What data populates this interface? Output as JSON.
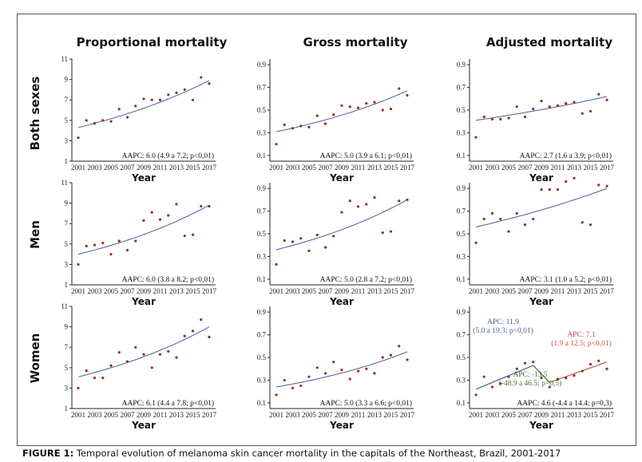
{
  "column_titles": [
    "Proportional mortality",
    "Gross mortality",
    "Adjusted mortality"
  ],
  "row_titles": [
    "Both sexes",
    "Men",
    "Women"
  ],
  "caption": {
    "label": "FIGURE 1:",
    "text": " Temporal evolution of melanoma skin cancer mortality in the capitals of the Northeast, Brazil, 2001-2017"
  },
  "colors": {
    "points": "#9a2b22",
    "trend": "#4a5a9c",
    "trend2": "#c0504d",
    "green": "#3a7a2a"
  },
  "chart_data": [
    {
      "type": "scatter",
      "row": "Both sexes",
      "col": "Proportional mortality",
      "xlabel": "Year",
      "ylim": [
        1,
        11
      ],
      "yticks": [
        "1",
        "3",
        "5",
        "7",
        "9",
        "11"
      ],
      "xticks": [
        "2001",
        "2003",
        "2005",
        "2007",
        "2009",
        "2011",
        "2013",
        "2015",
        "2017"
      ],
      "x": [
        2001,
        2002,
        2003,
        2004,
        2005,
        2006,
        2007,
        2008,
        2009,
        2010,
        2011,
        2012,
        2013,
        2014,
        2015,
        2016,
        2017
      ],
      "y": [
        3.3,
        5.0,
        4.7,
        5.0,
        4.9,
        6.1,
        5.3,
        6.4,
        7.1,
        7.0,
        7.0,
        7.5,
        7.7,
        8.0,
        7.0,
        9.2,
        8.6
      ],
      "trend": [
        4.3,
        8.9
      ],
      "annotation": "AAPC: 6.0 (4.9 a 7.2; p<0,01)"
    },
    {
      "type": "scatter",
      "row": "Both sexes",
      "col": "Gross mortality",
      "xlabel": "Year",
      "ylim": [
        0.05,
        0.95
      ],
      "yticks": [
        "0.1",
        "0.3",
        "0.5",
        "0.7",
        "0.9"
      ],
      "xticks": [
        "2001",
        "2003",
        "2005",
        "2007",
        "2009",
        "2011",
        "2013",
        "2015",
        "2017"
      ],
      "x": [
        2001,
        2002,
        2003,
        2004,
        2005,
        2006,
        2007,
        2008,
        2009,
        2010,
        2011,
        2012,
        2013,
        2014,
        2015,
        2016,
        2017
      ],
      "y": [
        0.2,
        0.37,
        0.34,
        0.36,
        0.35,
        0.45,
        0.38,
        0.46,
        0.54,
        0.53,
        0.52,
        0.56,
        0.57,
        0.5,
        0.51,
        0.69,
        0.63
      ],
      "trend": [
        0.31,
        0.67
      ],
      "annotation": "AAPC: 5.0 (3.9 a 6.1; p<0,01)"
    },
    {
      "type": "scatter",
      "row": "Both sexes",
      "col": "Adjusted mortality",
      "xlabel": "Year",
      "ylim": [
        0.05,
        0.95
      ],
      "yticks": [
        "0.1",
        "0.3",
        "0.5",
        "0.7",
        "0.9"
      ],
      "xticks": [
        "2001",
        "2003",
        "2005",
        "2007",
        "2009",
        "2011",
        "2013",
        "2015",
        "2017"
      ],
      "x": [
        2001,
        2002,
        2003,
        2004,
        2005,
        2006,
        2007,
        2008,
        2009,
        2010,
        2011,
        2012,
        2013,
        2014,
        2015,
        2016,
        2017
      ],
      "y": [
        0.26,
        0.44,
        0.42,
        0.42,
        0.43,
        0.53,
        0.44,
        0.51,
        0.58,
        0.53,
        0.54,
        0.56,
        0.57,
        0.47,
        0.49,
        0.64,
        0.59
      ],
      "trend": [
        0.41,
        0.62
      ],
      "annotation": "AAPC: 2.7 (1.6 a 3.9; p<0,01)"
    },
    {
      "type": "scatter",
      "row": "Men",
      "col": "Proportional mortality",
      "xlabel": "Year",
      "ylim": [
        1,
        11
      ],
      "yticks": [
        "1",
        "3",
        "5",
        "7",
        "9",
        "11"
      ],
      "xticks": [
        "2001",
        "2003",
        "2005",
        "2007",
        "2009",
        "2011",
        "2013",
        "2015",
        "2017"
      ],
      "x": [
        2001,
        2002,
        2003,
        2004,
        2005,
        2006,
        2007,
        2008,
        2009,
        2010,
        2011,
        2012,
        2013,
        2014,
        2015,
        2016,
        2017
      ],
      "y": [
        3.0,
        4.8,
        4.9,
        5.1,
        4.0,
        5.3,
        4.4,
        5.3,
        7.3,
        8.1,
        7.4,
        7.8,
        8.9,
        5.8,
        5.9,
        8.7,
        8.7
      ],
      "trend": [
        4.0,
        8.8
      ],
      "annotation": "AAPC: 6.0 (3.8 a 8.2; p<0,01)"
    },
    {
      "type": "scatter",
      "row": "Men",
      "col": "Gross mortality",
      "xlabel": "Year",
      "ylim": [
        0.05,
        0.95
      ],
      "yticks": [
        "0.1",
        "0.3",
        "0.5",
        "0.7",
        "0.9"
      ],
      "xticks": [
        "2001",
        "2003",
        "2005",
        "2007",
        "2009",
        "2011",
        "2013",
        "2015",
        "2017"
      ],
      "x": [
        2001,
        2002,
        2003,
        2004,
        2005,
        2006,
        2007,
        2008,
        2009,
        2010,
        2011,
        2012,
        2013,
        2014,
        2015,
        2016,
        2017
      ],
      "y": [
        0.23,
        0.44,
        0.43,
        0.46,
        0.35,
        0.49,
        0.38,
        0.48,
        0.69,
        0.79,
        0.74,
        0.76,
        0.82,
        0.51,
        0.52,
        0.79,
        0.8
      ],
      "trend": [
        0.36,
        0.8
      ],
      "annotation": "AAPC: 5.0 (2.8 a 7.2; p<0,01)"
    },
    {
      "type": "scatter",
      "row": "Men",
      "col": "Adjusted mortality",
      "xlabel": "Year",
      "ylim": [
        0.05,
        0.95
      ],
      "yticks": [
        "0.1",
        "0.3",
        "0.5",
        "0.7",
        "0.9"
      ],
      "xticks": [
        "2001",
        "2003",
        "2005",
        "2007",
        "2009",
        "2011",
        "2013",
        "2015",
        "2017"
      ],
      "x": [
        2001,
        2002,
        2003,
        2004,
        2005,
        2006,
        2007,
        2008,
        2009,
        2010,
        2011,
        2012,
        2013,
        2014,
        2015,
        2016,
        2017
      ],
      "y": [
        0.42,
        0.63,
        0.68,
        0.63,
        0.52,
        0.68,
        0.58,
        0.63,
        0.89,
        0.89,
        0.89,
        0.96,
        0.99,
        0.6,
        0.58,
        0.93,
        0.92
      ],
      "trend": [
        0.56,
        0.9
      ],
      "annotation": "AAPC: 3.1 (1.0 a 5.2; p<0,01)"
    },
    {
      "type": "scatter",
      "row": "Women",
      "col": "Proportional mortality",
      "xlabel": "Year",
      "ylim": [
        1,
        11
      ],
      "yticks": [
        "1",
        "3",
        "5",
        "7",
        "9",
        "11"
      ],
      "xticks": [
        "2001",
        "2003",
        "2005",
        "2007",
        "2009",
        "2011",
        "2013",
        "2015",
        "2017"
      ],
      "x": [
        2001,
        2002,
        2003,
        2004,
        2005,
        2006,
        2007,
        2008,
        2009,
        2010,
        2011,
        2012,
        2013,
        2014,
        2015,
        2016,
        2017
      ],
      "y": [
        3.0,
        4.7,
        4.0,
        4.0,
        5.2,
        6.5,
        5.6,
        7.0,
        6.3,
        5.0,
        6.3,
        6.6,
        6.0,
        8.1,
        8.6,
        9.7,
        8.0
      ],
      "trend": [
        4.1,
        9.0
      ],
      "annotation": "AAPC: 6.1 (4.4 a 7.8; p<0,01)"
    },
    {
      "type": "scatter",
      "row": "Women",
      "col": "Gross mortality",
      "xlabel": "Year",
      "ylim": [
        0.05,
        0.95
      ],
      "yticks": [
        "0.1",
        "0.3",
        "0.5",
        "0.7",
        "0.9"
      ],
      "xticks": [
        "2001",
        "2003",
        "2005",
        "2007",
        "2009",
        "2011",
        "2013",
        "2015",
        "2017"
      ],
      "x": [
        2001,
        2002,
        2003,
        2004,
        2005,
        2006,
        2007,
        2008,
        2009,
        2010,
        2011,
        2012,
        2013,
        2014,
        2015,
        2016,
        2017
      ],
      "y": [
        0.17,
        0.3,
        0.23,
        0.25,
        0.33,
        0.41,
        0.36,
        0.46,
        0.39,
        0.31,
        0.38,
        0.4,
        0.36,
        0.5,
        0.52,
        0.6,
        0.48
      ],
      "trend": [
        0.24,
        0.55
      ],
      "annotation": "AAPC: 5.0 (3.3 a 6.6; p<0,01)"
    },
    {
      "type": "scatter",
      "row": "Women",
      "col": "Adjusted mortality",
      "xlabel": "Year",
      "ylim": [
        0.05,
        0.95
      ],
      "yticks": [
        "0.1",
        "0.3",
        "0.5",
        "0.7",
        "0.9"
      ],
      "xticks": [
        "2001",
        "2003",
        "2005",
        "2007",
        "2009",
        "2011",
        "2013",
        "2015",
        "2017"
      ],
      "x": [
        2001,
        2002,
        2003,
        2004,
        2005,
        2006,
        2007,
        2008,
        2009,
        2010,
        2011,
        2012,
        2013,
        2014,
        2015,
        2016,
        2017
      ],
      "y": [
        0.17,
        0.33,
        0.24,
        0.27,
        0.33,
        0.4,
        0.45,
        0.46,
        0.32,
        0.24,
        0.31,
        0.32,
        0.34,
        0.38,
        0.44,
        0.47,
        0.4
      ],
      "segments": [
        {
          "x": [
            2001,
            2008
          ],
          "y": [
            0.22,
            0.43
          ],
          "color": "#4a5a9c"
        },
        {
          "x": [
            2008,
            2010
          ],
          "y": [
            0.43,
            0.28
          ],
          "color": "#3a7a2a"
        },
        {
          "x": [
            2010,
            2017
          ],
          "y": [
            0.28,
            0.46
          ],
          "color": "#c0504d"
        }
      ],
      "annotation": "AAPC: 4.6 (-4.4 a 14.4; p=0,3)",
      "callouts": [
        {
          "lines": [
            "APC: 11.9",
            "(5.0 a 19.3; p<0,01)"
          ],
          "color": "#4a5a9c",
          "pos": "upper-left"
        },
        {
          "lines": [
            "APC: 7.1",
            "(1.9 a 12.5; p<0,01)"
          ],
          "color": "#c0504d",
          "pos": "upper-right"
        },
        {
          "lines": [
            "APC: -13.5",
            "(-48.9 a 46.5; p=0,5)"
          ],
          "color": "#3a7a2a",
          "pos": "lower-middle"
        }
      ]
    }
  ]
}
